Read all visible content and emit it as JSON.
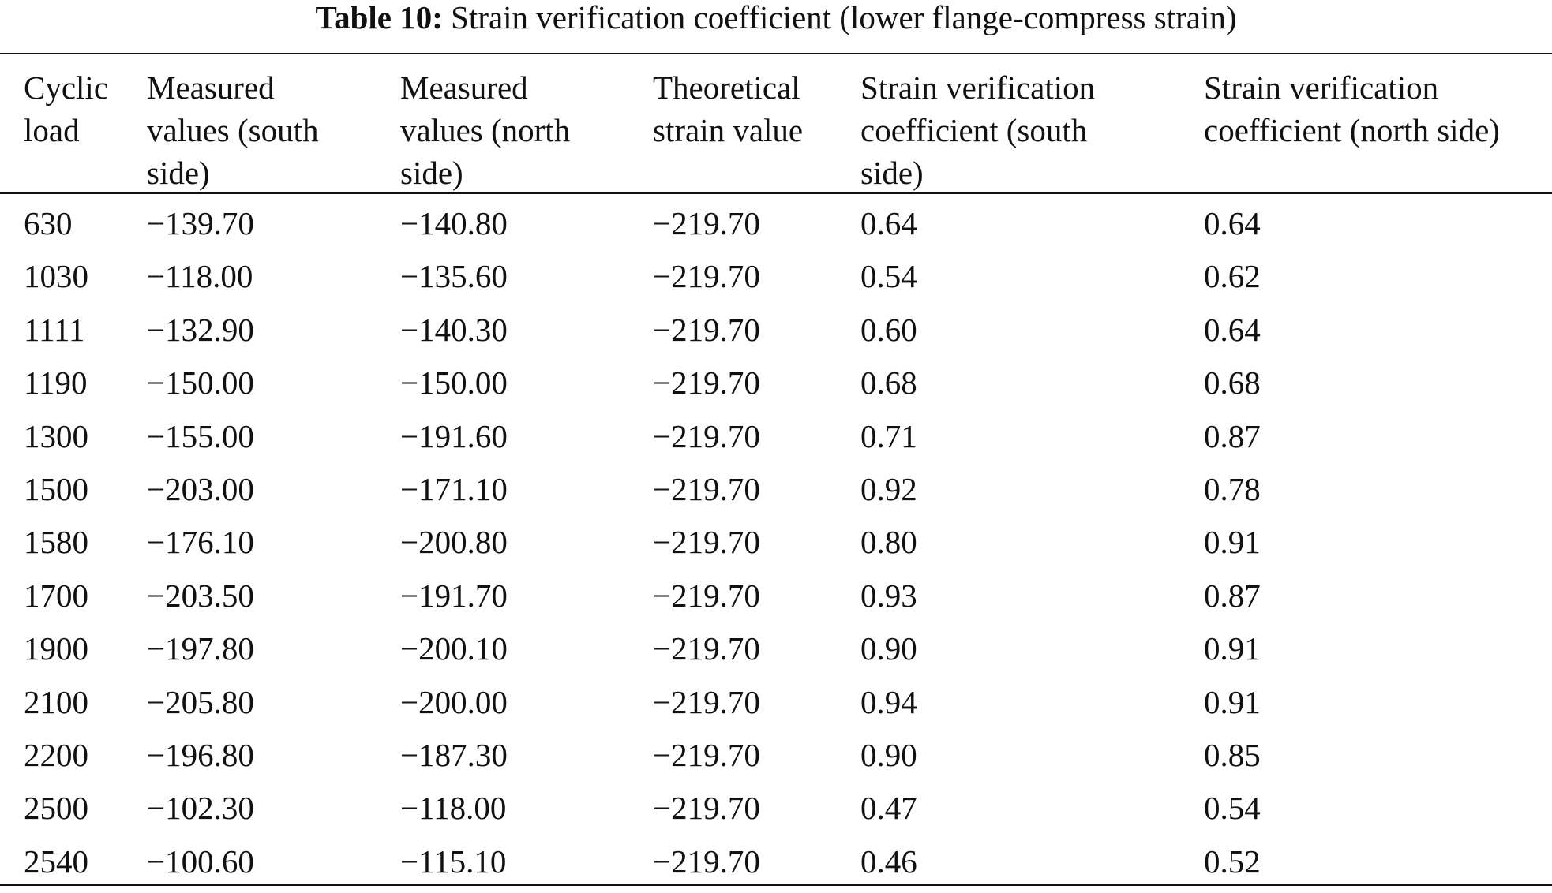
{
  "caption": {
    "label": "Table 10:",
    "text": "Strain verification coefficient (lower flange-compress strain)"
  },
  "headers": [
    "Cyclic\nload",
    "Measured\nvalues (south\nside)",
    "Measured\nvalues (north\nside)",
    "Theoretical\nstrain value",
    "Strain verification\ncoefficient (south\nside)",
    "Strain verification\ncoefficient (north side)"
  ],
  "rows": [
    [
      "630",
      "−139.70",
      "−140.80",
      "−219.70",
      "0.64",
      "0.64"
    ],
    [
      "1030",
      "−118.00",
      "−135.60",
      "−219.70",
      "0.54",
      "0.62"
    ],
    [
      "1111",
      "−132.90",
      "−140.30",
      "−219.70",
      "0.60",
      "0.64"
    ],
    [
      "1190",
      "−150.00",
      "−150.00",
      "−219.70",
      "0.68",
      "0.68"
    ],
    [
      "1300",
      "−155.00",
      "−191.60",
      "−219.70",
      "0.71",
      "0.87"
    ],
    [
      "1500",
      "−203.00",
      "−171.10",
      "−219.70",
      "0.92",
      "0.78"
    ],
    [
      "1580",
      "−176.10",
      "−200.80",
      "−219.70",
      "0.80",
      "0.91"
    ],
    [
      "1700",
      "−203.50",
      "−191.70",
      "−219.70",
      "0.93",
      "0.87"
    ],
    [
      "1900",
      "−197.80",
      "−200.10",
      "−219.70",
      "0.90",
      "0.91"
    ],
    [
      "2100",
      "−205.80",
      "−200.00",
      "−219.70",
      "0.94",
      "0.91"
    ],
    [
      "2200",
      "−196.80",
      "−187.30",
      "−219.70",
      "0.90",
      "0.85"
    ],
    [
      "2500",
      "−102.30",
      "−118.00",
      "−219.70",
      "0.47",
      "0.54"
    ],
    [
      "2540",
      "−100.60",
      "−115.10",
      "−219.70",
      "0.46",
      "0.52"
    ]
  ]
}
